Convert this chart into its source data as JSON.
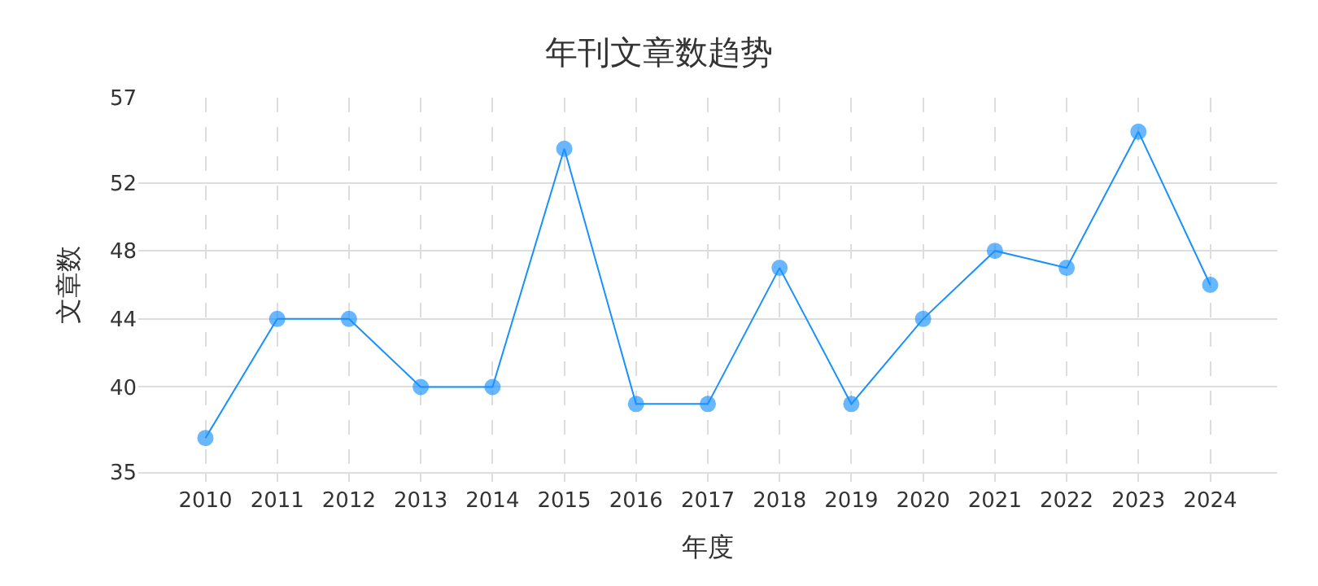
{
  "chart_data": {
    "type": "line",
    "title": "年刊文章数趋势",
    "xlabel": "年度",
    "ylabel": "文章数",
    "categories": [
      "2010",
      "2011",
      "2012",
      "2013",
      "2014",
      "2015",
      "2016",
      "2017",
      "2018",
      "2019",
      "2020",
      "2021",
      "2022",
      "2023",
      "2024"
    ],
    "series": [
      {
        "color": "#1890ff",
        "values": [
          37,
          44,
          44,
          40,
          40,
          54,
          39,
          39,
          47,
          39,
          44,
          48,
          47,
          55,
          46
        ]
      }
    ],
    "ylim": [
      35,
      57
    ],
    "yticks": [
      35,
      40,
      44,
      48,
      52,
      57
    ],
    "grid": true,
    "marker": "circle",
    "line_style": "solid"
  }
}
